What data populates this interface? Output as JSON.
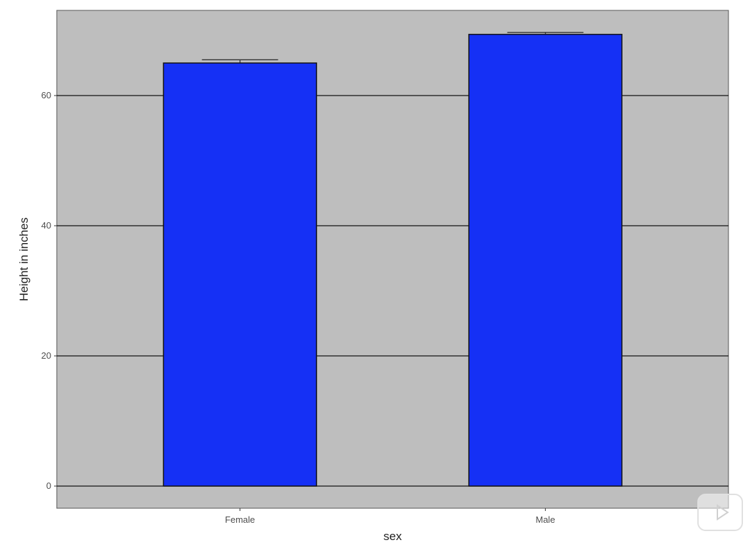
{
  "chart_data": {
    "type": "bar",
    "categories": [
      "Female",
      "Male"
    ],
    "values": [
      65.0,
      69.4
    ],
    "error_upper": [
      65.5,
      69.7
    ],
    "xlabel": "sex",
    "ylabel": "Height in inches",
    "yticks": [
      0,
      20,
      40,
      60
    ],
    "ylim": [
      -3.4,
      73
    ],
    "grid": "major y only",
    "bar_color": "#1530f5",
    "panel_color": "#bebebe"
  },
  "overlay": {
    "icon": "play-icon"
  }
}
